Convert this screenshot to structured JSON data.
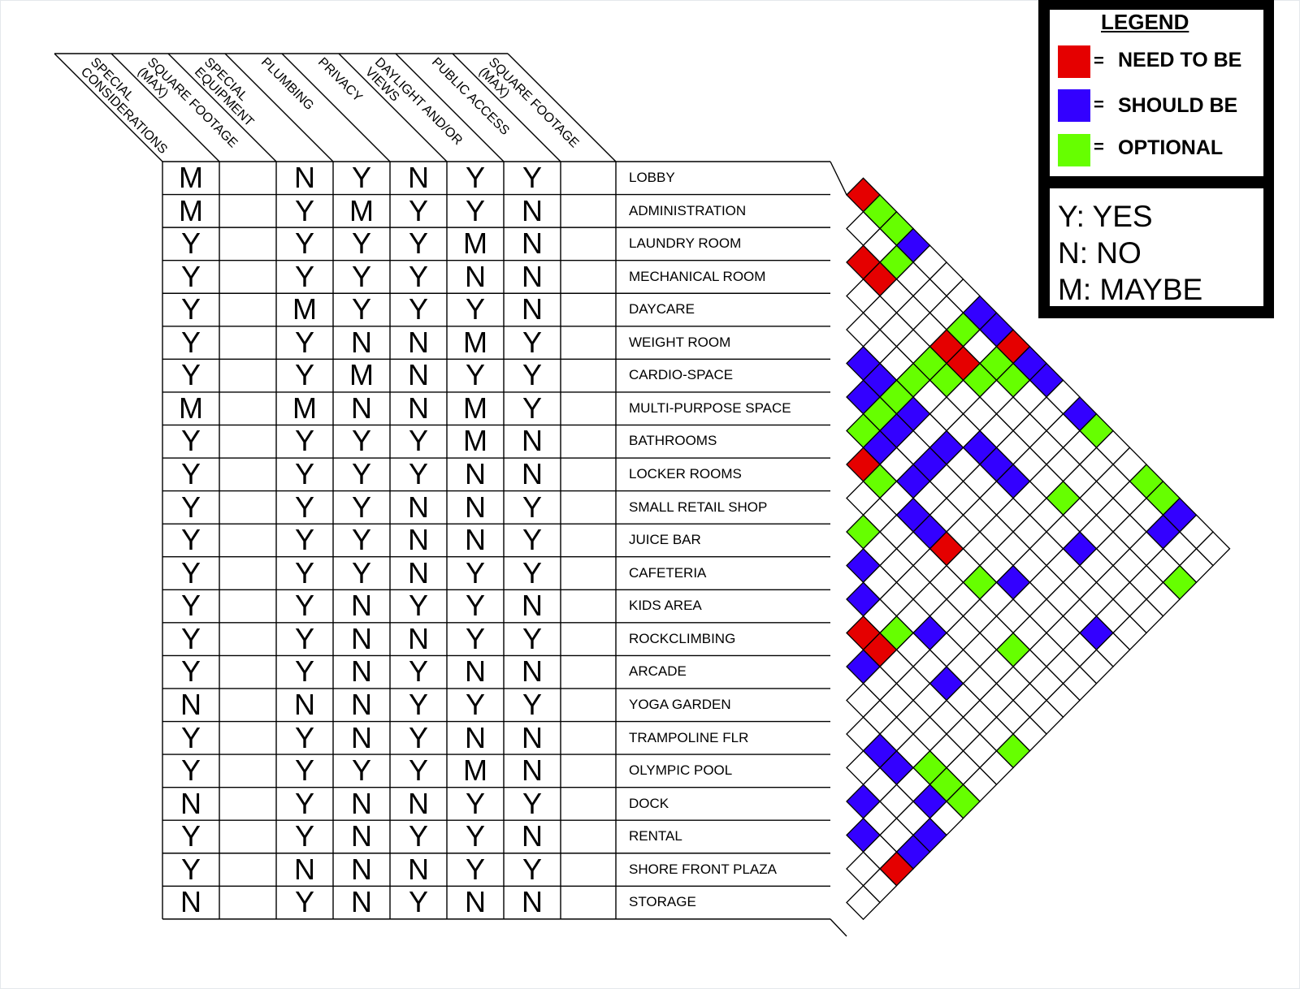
{
  "columns": [
    {
      "label": "SPECIAL\nCONSIDERATIONS"
    },
    {
      "label": "SQUARE FOOTAGE\n(MAX)"
    },
    {
      "label": "SPECIAL\nEQUIPMENT"
    },
    {
      "label": "PLUMBING"
    },
    {
      "label": "PRIVACY"
    },
    {
      "label": "DAYLIGHT AND/OR\nVIEWS"
    },
    {
      "label": "PUBLIC ACCESS"
    },
    {
      "label": "SQUARE FOOTAGE\n(MAX)"
    }
  ],
  "rows": [
    {
      "room": "LOBBY",
      "values": [
        "M",
        "",
        "N",
        "Y",
        "N",
        "Y",
        "Y",
        ""
      ]
    },
    {
      "room": "ADMINISTRATION",
      "values": [
        "M",
        "",
        "Y",
        "M",
        "Y",
        "Y",
        "N",
        ""
      ]
    },
    {
      "room": "LAUNDRY ROOM",
      "values": [
        "Y",
        "",
        "Y",
        "Y",
        "Y",
        "M",
        "N",
        ""
      ]
    },
    {
      "room": "MECHANICAL ROOM",
      "values": [
        "Y",
        "",
        "Y",
        "Y",
        "Y",
        "N",
        "N",
        ""
      ]
    },
    {
      "room": "DAYCARE",
      "values": [
        "Y",
        "",
        "M",
        "Y",
        "Y",
        "Y",
        "N",
        ""
      ]
    },
    {
      "room": "WEIGHT ROOM",
      "values": [
        "Y",
        "",
        "Y",
        "N",
        "N",
        "M",
        "Y",
        ""
      ]
    },
    {
      "room": "CARDIO-SPACE",
      "values": [
        "Y",
        "",
        "Y",
        "M",
        "N",
        "Y",
        "Y",
        ""
      ]
    },
    {
      "room": "MULTI-PURPOSE SPACE",
      "values": [
        "M",
        "",
        "M",
        "N",
        "N",
        "M",
        "Y",
        ""
      ]
    },
    {
      "room": "BATHROOMS",
      "values": [
        "Y",
        "",
        "Y",
        "Y",
        "Y",
        "M",
        "N",
        ""
      ]
    },
    {
      "room": "LOCKER ROOMS",
      "values": [
        "Y",
        "",
        "Y",
        "Y",
        "Y",
        "N",
        "N",
        ""
      ]
    },
    {
      "room": "SMALL RETAIL SHOP",
      "values": [
        "Y",
        "",
        "Y",
        "Y",
        "N",
        "N",
        "Y",
        ""
      ]
    },
    {
      "room": "JUICE BAR",
      "values": [
        "Y",
        "",
        "Y",
        "Y",
        "N",
        "N",
        "Y",
        ""
      ]
    },
    {
      "room": "CAFETERIA",
      "values": [
        "Y",
        "",
        "Y",
        "Y",
        "N",
        "Y",
        "Y",
        ""
      ]
    },
    {
      "room": "KIDS AREA",
      "values": [
        "Y",
        "",
        "Y",
        "N",
        "Y",
        "Y",
        "N",
        ""
      ]
    },
    {
      "room": "ROCKCLIMBING",
      "values": [
        "Y",
        "",
        "Y",
        "N",
        "N",
        "Y",
        "Y",
        ""
      ]
    },
    {
      "room": "ARCADE",
      "values": [
        "Y",
        "",
        "Y",
        "N",
        "Y",
        "N",
        "N",
        ""
      ]
    },
    {
      "room": "YOGA GARDEN",
      "values": [
        "N",
        "",
        "N",
        "N",
        "Y",
        "Y",
        "Y",
        ""
      ]
    },
    {
      "room": "TRAMPOLINE FLR",
      "values": [
        "Y",
        "",
        "Y",
        "N",
        "Y",
        "N",
        "N",
        ""
      ]
    },
    {
      "room": "OLYMPIC POOL",
      "values": [
        "Y",
        "",
        "Y",
        "Y",
        "Y",
        "M",
        "N",
        ""
      ]
    },
    {
      "room": "DOCK",
      "values": [
        "N",
        "",
        "Y",
        "N",
        "N",
        "Y",
        "Y",
        ""
      ]
    },
    {
      "room": "RENTAL",
      "values": [
        "Y",
        "",
        "Y",
        "N",
        "Y",
        "Y",
        "N",
        ""
      ]
    },
    {
      "room": "SHORE FRONT PLAZA",
      "values": [
        "Y",
        "",
        "N",
        "N",
        "N",
        "Y",
        "Y",
        ""
      ]
    },
    {
      "room": "STORAGE",
      "values": [
        "N",
        "",
        "Y",
        "N",
        "Y",
        "N",
        "N",
        ""
      ]
    }
  ],
  "adjacency": {
    "need_to_be": [
      [
        0,
        1
      ],
      [
        2,
        3
      ],
      [
        2,
        4
      ],
      [
        0,
        10
      ],
      [
        2,
        8
      ],
      [
        2,
        9
      ],
      [
        8,
        9
      ],
      [
        8,
        14
      ],
      [
        13,
        14
      ],
      [
        13,
        15
      ],
      [
        19,
        22
      ]
    ],
    "should_be": [
      [
        0,
        4
      ],
      [
        0,
        8
      ],
      [
        0,
        9
      ],
      [
        0,
        11
      ],
      [
        0,
        12
      ],
      [
        0,
        14
      ],
      [
        0,
        20
      ],
      [
        1,
        20
      ],
      [
        5,
        6
      ],
      [
        5,
        7
      ],
      [
        6,
        7
      ],
      [
        5,
        9
      ],
      [
        6,
        9
      ],
      [
        7,
        9
      ],
      [
        7,
        11
      ],
      [
        6,
        11
      ],
      [
        5,
        11
      ],
      [
        4,
        12
      ],
      [
        4,
        13
      ],
      [
        4,
        14
      ],
      [
        8,
        12
      ],
      [
        8,
        13
      ],
      [
        4,
        18
      ],
      [
        7,
        17
      ],
      [
        11,
        12
      ],
      [
        12,
        13
      ],
      [
        11,
        16
      ],
      [
        14,
        15
      ],
      [
        12,
        18
      ],
      [
        6,
        21
      ],
      [
        16,
        18
      ],
      [
        16,
        19
      ],
      [
        16,
        21
      ],
      [
        18,
        19
      ],
      [
        19,
        20
      ],
      [
        17,
        22
      ],
      [
        18,
        22
      ]
    ],
    "optional": [
      [
        0,
        2
      ],
      [
        0,
        3
      ],
      [
        1,
        4
      ],
      [
        1,
        8
      ],
      [
        3,
        8
      ],
      [
        4,
        8
      ],
      [
        3,
        9
      ],
      [
        2,
        10
      ],
      [
        1,
        10
      ],
      [
        1,
        11
      ],
      [
        5,
        8
      ],
      [
        6,
        8
      ],
      [
        7,
        8
      ],
      [
        8,
        10
      ],
      [
        3,
        16
      ],
      [
        0,
        15
      ],
      [
        0,
        18
      ],
      [
        0,
        19
      ],
      [
        2,
        22
      ],
      [
        10,
        11
      ],
      [
        8,
        16
      ],
      [
        12,
        15
      ],
      [
        9,
        19
      ],
      [
        12,
        22
      ],
      [
        15,
        20
      ],
      [
        15,
        21
      ],
      [
        15,
        22
      ]
    ]
  },
  "legend": {
    "title": "LEGEND",
    "items": [
      {
        "label": "NEED TO BE",
        "color": "#e50000",
        "symbol": "="
      },
      {
        "label": "SHOULD BE",
        "color": "#3300ff",
        "symbol": "="
      },
      {
        "label": "OPTIONAL",
        "color": "#66ff00",
        "symbol": "="
      }
    ],
    "key": [
      {
        "text": "Y: YES"
      },
      {
        "text": "N: NO"
      },
      {
        "text": "M: MAYBE"
      }
    ]
  }
}
